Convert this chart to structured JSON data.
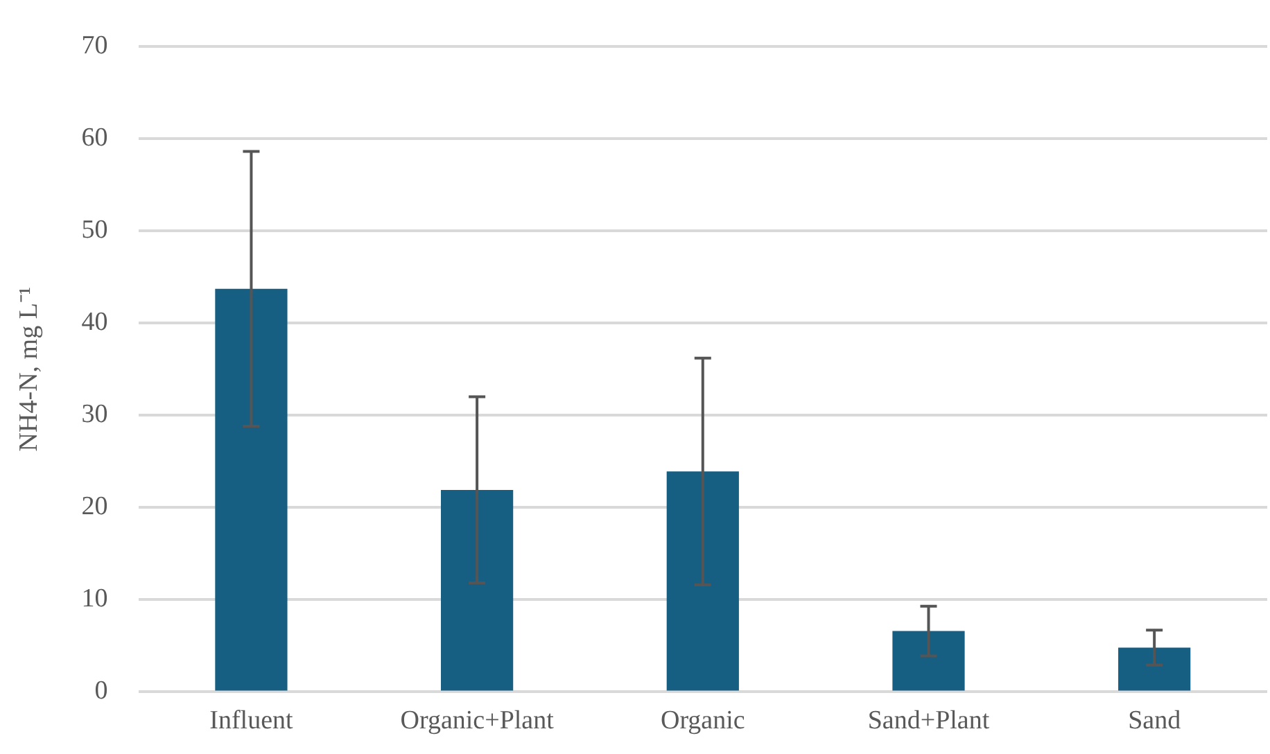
{
  "chart_data": {
    "type": "bar",
    "ylabel": "NH4-N, mg L⁻¹",
    "categories": [
      "Influent",
      "Organic+Plant",
      "Organic",
      "Sand+Plant",
      "Sand"
    ],
    "values": [
      43.7,
      21.9,
      23.9,
      6.6,
      4.8
    ],
    "errors": [
      14.9,
      10.1,
      12.3,
      2.7,
      1.9
    ],
    "color": "#175f82",
    "ylim": [
      0,
      70
    ],
    "yticks": [
      0,
      10,
      20,
      30,
      40,
      50,
      60,
      70
    ],
    "grid": "y",
    "legend": false
  }
}
